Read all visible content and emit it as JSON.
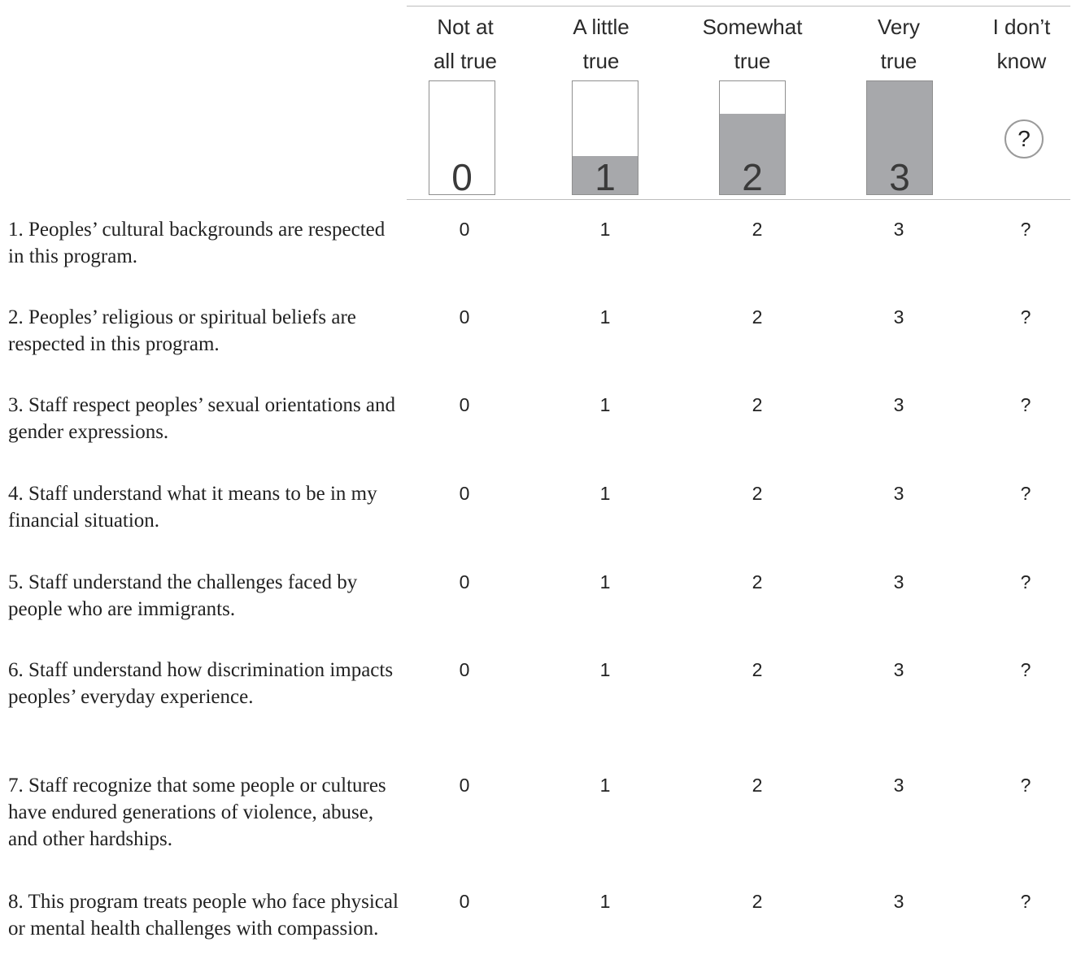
{
  "scale": {
    "columns": [
      {
        "line1": "Not at",
        "line2": "all true",
        "value": "0",
        "fill_fraction": 0
      },
      {
        "line1": "A little",
        "line2": "true",
        "value": "1",
        "fill_fraction": 0.34
      },
      {
        "line1": "Somewhat",
        "line2": "true",
        "value": "2",
        "fill_fraction": 0.71
      },
      {
        "line1": "Very",
        "line2": "true",
        "value": "3",
        "fill_fraction": 1.0
      },
      {
        "line1": "I don’t",
        "line2": "know",
        "value": "?"
      }
    ],
    "fill_color": "#a7a8ab"
  },
  "items": [
    {
      "text": "1. Peoples’ cultural backgrounds are respected in this program."
    },
    {
      "text": "2. Peoples’ religious or spiritual beliefs are respected in this program."
    },
    {
      "text": "3. Staff respect peoples’ sexual orientations and gender expressions."
    },
    {
      "text": "4. Staff understand what it means to be in my financial situation."
    },
    {
      "text": "5. Staff understand the challenges faced by people who are immigrants."
    },
    {
      "text": "6. Staff understand how discrimination impacts peoples’ everyday experience."
    },
    {
      "text": "7. Staff recognize that some people or cultures have endured generations of violence, abuse, and other hardships."
    },
    {
      "text": "8. This program treats people who face physical or mental health challenges with compassion."
    }
  ],
  "options": [
    "0",
    "1",
    "2",
    "3",
    "?"
  ]
}
